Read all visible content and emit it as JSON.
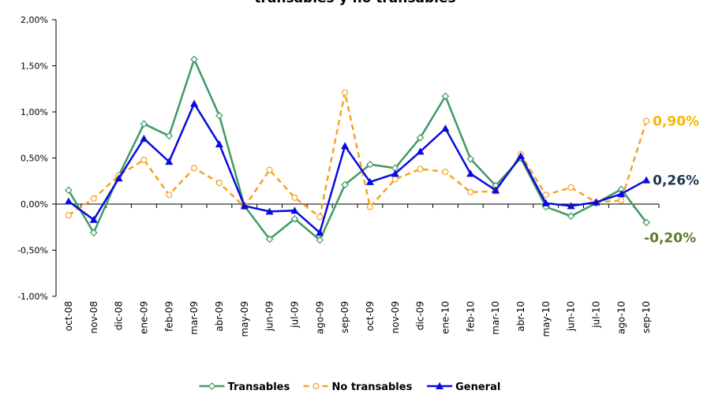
{
  "chart_data": {
    "type": "line",
    "title": "transables y no transables",
    "categories": [
      "oct-08",
      "nov-08",
      "dic-08",
      "ene-09",
      "feb-09",
      "mar-09",
      "abr-09",
      "may-09",
      "jun-09",
      "jul-09",
      "ago-09",
      "sep-09",
      "oct-09",
      "nov-09",
      "dic-09",
      "ene-10",
      "feb-10",
      "mar-10",
      "abr-10",
      "may-10",
      "jun-10",
      "jul-10",
      "ago-10",
      "sep-10"
    ],
    "series": [
      {
        "name": "Transables",
        "color": "#3f9a63",
        "marker": "diamond",
        "dash": false,
        "end_label": "-0,20%",
        "label_color": "#5b7a2c",
        "values": [
          0.15,
          -0.31,
          0.31,
          0.87,
          0.74,
          1.57,
          0.96,
          -0.02,
          -0.38,
          -0.16,
          -0.39,
          0.21,
          0.43,
          0.39,
          0.72,
          1.17,
          0.49,
          0.2,
          0.5,
          -0.03,
          -0.13,
          0.01,
          0.16,
          -0.2
        ]
      },
      {
        "name": "No transables",
        "color": "#f7a125",
        "marker": "circle",
        "dash": true,
        "end_label": "0,90%",
        "label_color": "#f5b800",
        "values": [
          -0.12,
          0.06,
          0.31,
          0.48,
          0.1,
          0.39,
          0.23,
          -0.03,
          0.37,
          0.07,
          -0.14,
          1.21,
          -0.03,
          0.27,
          0.38,
          0.35,
          0.13,
          0.14,
          0.54,
          0.1,
          0.18,
          0.02,
          0.04,
          0.9
        ]
      },
      {
        "name": "General",
        "color": "#0a0ae0",
        "marker": "triangle",
        "dash": false,
        "end_label": "0,26%",
        "label_color": "#1f3550",
        "values": [
          0.03,
          -0.17,
          0.28,
          0.71,
          0.46,
          1.09,
          0.65,
          -0.02,
          -0.08,
          -0.07,
          -0.31,
          0.63,
          0.24,
          0.33,
          0.57,
          0.82,
          0.33,
          0.15,
          0.52,
          0.01,
          -0.02,
          0.02,
          0.11,
          0.26
        ]
      }
    ],
    "ylim": [
      -1,
      2
    ],
    "yticks": [
      {
        "value": -1,
        "label": "-1,00%"
      },
      {
        "value": -0.5,
        "label": "-0,50%"
      },
      {
        "value": 0,
        "label": "0,00%"
      },
      {
        "value": 0.5,
        "label": "0,50%"
      },
      {
        "value": 1,
        "label": "1,00%"
      },
      {
        "value": 1.5,
        "label": "1,50%"
      },
      {
        "value": 2,
        "label": "2,00%"
      }
    ],
    "grid": false,
    "legend": "bottom"
  }
}
